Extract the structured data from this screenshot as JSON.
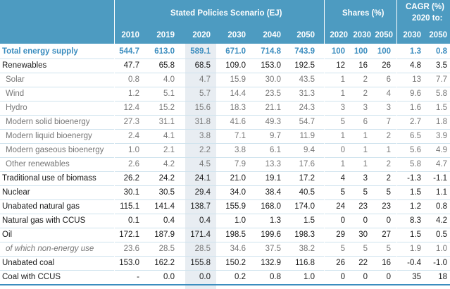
{
  "header": {
    "scenario_title": "Stated Policies Scenario (EJ)",
    "shares_title": "Shares (%)",
    "cagr_title": "CAGR (%)",
    "cagr_subtitle": "2020 to:",
    "years": [
      "2010",
      "2019",
      "2020",
      "2030",
      "2040",
      "2050"
    ],
    "share_years": [
      "2020",
      "2030",
      "2050"
    ],
    "cagr_years": [
      "2030",
      "2050"
    ]
  },
  "rows": [
    {
      "label": "Total energy supply",
      "values": [
        "544.7",
        "613.0",
        "589.1",
        "671.0",
        "714.8",
        "743.9"
      ],
      "shares": [
        "100",
        "100",
        "100"
      ],
      "cagr": [
        "1.3",
        "0.8"
      ],
      "style": "total"
    },
    {
      "label": "Renewables",
      "values": [
        "47.7",
        "65.8",
        "68.5",
        "109.0",
        "153.0",
        "192.5"
      ],
      "shares": [
        "12",
        "16",
        "26"
      ],
      "cagr": [
        "4.8",
        "3.5"
      ],
      "style": "main"
    },
    {
      "label": "Solar",
      "values": [
        "0.8",
        "4.0",
        "4.7",
        "15.9",
        "30.0",
        "43.5"
      ],
      "shares": [
        "1",
        "2",
        "6"
      ],
      "cagr": [
        "13",
        "7.7"
      ],
      "style": "sub"
    },
    {
      "label": "Wind",
      "values": [
        "1.2",
        "5.1",
        "5.7",
        "14.4",
        "23.5",
        "31.3"
      ],
      "shares": [
        "1",
        "2",
        "4"
      ],
      "cagr": [
        "9.6",
        "5.8"
      ],
      "style": "sub"
    },
    {
      "label": "Hydro",
      "values": [
        "12.4",
        "15.2",
        "15.6",
        "18.3",
        "21.1",
        "24.3"
      ],
      "shares": [
        "3",
        "3",
        "3"
      ],
      "cagr": [
        "1.6",
        "1.5"
      ],
      "style": "sub"
    },
    {
      "label": "Modern solid bioenergy",
      "values": [
        "27.3",
        "31.1",
        "31.8",
        "41.6",
        "49.3",
        "54.7"
      ],
      "shares": [
        "5",
        "6",
        "7"
      ],
      "cagr": [
        "2.7",
        "1.8"
      ],
      "style": "sub"
    },
    {
      "label": "Modern liquid bioenergy",
      "values": [
        "2.4",
        "4.1",
        "3.8",
        "7.1",
        "9.7",
        "11.9"
      ],
      "shares": [
        "1",
        "1",
        "2"
      ],
      "cagr": [
        "6.5",
        "3.9"
      ],
      "style": "sub"
    },
    {
      "label": "Modern gaseous bioenergy",
      "values": [
        "1.0",
        "2.1",
        "2.2",
        "3.8",
        "6.1",
        "9.4"
      ],
      "shares": [
        "0",
        "1",
        "1"
      ],
      "cagr": [
        "5.6",
        "4.9"
      ],
      "style": "sub"
    },
    {
      "label": "Other renewables",
      "values": [
        "2.6",
        "4.2",
        "4.5",
        "7.9",
        "13.3",
        "17.6"
      ],
      "shares": [
        "1",
        "1",
        "2"
      ],
      "cagr": [
        "5.8",
        "4.7"
      ],
      "style": "sub"
    },
    {
      "label": "Traditional use of biomass",
      "values": [
        "26.2",
        "24.2",
        "24.1",
        "21.0",
        "19.1",
        "17.2"
      ],
      "shares": [
        "4",
        "3",
        "2"
      ],
      "cagr": [
        "-1.3",
        "-1.1"
      ],
      "style": "main"
    },
    {
      "label": "Nuclear",
      "values": [
        "30.1",
        "30.5",
        "29.4",
        "34.0",
        "38.4",
        "40.5"
      ],
      "shares": [
        "5",
        "5",
        "5"
      ],
      "cagr": [
        "1.5",
        "1.1"
      ],
      "style": "main"
    },
    {
      "label": "Unabated natural gas",
      "values": [
        "115.1",
        "141.4",
        "138.7",
        "155.9",
        "168.0",
        "174.0"
      ],
      "shares": [
        "24",
        "23",
        "23"
      ],
      "cagr": [
        "1.2",
        "0.8"
      ],
      "style": "main"
    },
    {
      "label": "Natural gas with CCUS",
      "values": [
        "0.1",
        "0.4",
        "0.4",
        "1.0",
        "1.3",
        "1.5"
      ],
      "shares": [
        "0",
        "0",
        "0"
      ],
      "cagr": [
        "8.3",
        "4.2"
      ],
      "style": "main"
    },
    {
      "label": "Oil",
      "values": [
        "172.1",
        "187.9",
        "171.4",
        "198.5",
        "199.6",
        "198.3"
      ],
      "shares": [
        "29",
        "30",
        "27"
      ],
      "cagr": [
        "1.5",
        "0.5"
      ],
      "style": "main"
    },
    {
      "label": "of which non-energy use",
      "values": [
        "23.6",
        "28.5",
        "28.5",
        "34.6",
        "37.5",
        "38.2"
      ],
      "shares": [
        "5",
        "5",
        "5"
      ],
      "cagr": [
        "1.9",
        "1.0"
      ],
      "style": "sub ital"
    },
    {
      "label": "Unabated coal",
      "values": [
        "153.0",
        "162.2",
        "155.8",
        "150.2",
        "132.9",
        "116.8"
      ],
      "shares": [
        "26",
        "22",
        "16"
      ],
      "cagr": [
        "-0.4",
        "-1.0"
      ],
      "style": "main"
    },
    {
      "label": "Coal with CCUS",
      "values": [
        "-",
        "0.0",
        "0.0",
        "0.2",
        "0.8",
        "1.0"
      ],
      "shares": [
        "0",
        "0",
        "0"
      ],
      "cagr": [
        "35",
        "18"
      ],
      "style": "main"
    }
  ]
}
